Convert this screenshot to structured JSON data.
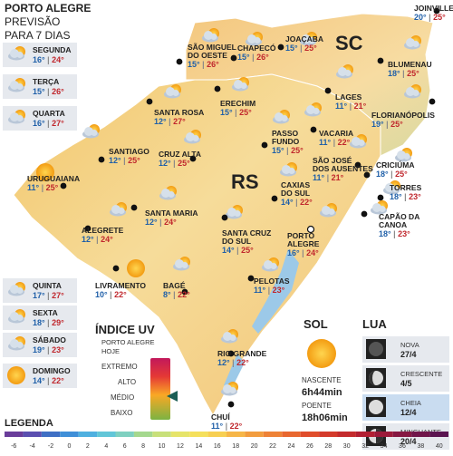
{
  "header": {
    "title": "PORTO ALEGRE",
    "subtitle_1": "PREVISÃO",
    "subtitle_2": "PARA 7 DIAS"
  },
  "days": [
    {
      "name": "SEGUNDA",
      "min": "16°",
      "max": "24°"
    },
    {
      "name": "TERÇA",
      "min": "15°",
      "max": "26°"
    },
    {
      "name": "QUARTA",
      "min": "16°",
      "max": "27°"
    },
    {
      "name": "QUINTA",
      "min": "17°",
      "max": "27°"
    },
    {
      "name": "SEXTA",
      "min": "18°",
      "max": "29°"
    },
    {
      "name": "SÁBADO",
      "min": "19°",
      "max": "23°"
    },
    {
      "name": "DOMINGO",
      "min": "14°",
      "max": "22°"
    }
  ],
  "states": [
    "RS",
    "SC"
  ],
  "cities": [
    {
      "name": "JOINVILLE",
      "min": "20°",
      "max": "25°"
    },
    {
      "name": "SÃO MIGUEL",
      "name_2": "DO OESTE",
      "min": "15°",
      "max": "26°"
    },
    {
      "name": "CHAPECÓ",
      "min": "15°",
      "max": "26°"
    },
    {
      "name": "JOAÇABA",
      "min": "15°",
      "max": "25°"
    },
    {
      "name": "BLUMENAU",
      "min": "18°",
      "max": "25°"
    },
    {
      "name": "LAGES",
      "min": "11°",
      "max": "21°"
    },
    {
      "name": "FLORIANÓPOLIS",
      "min": "19°",
      "max": "25°"
    },
    {
      "name": "SANTA ROSA",
      "min": "12°",
      "max": "27°"
    },
    {
      "name": "ERECHIM",
      "min": "15°",
      "max": "25°"
    },
    {
      "name": "VACARIA",
      "min": "11°",
      "max": "22°"
    },
    {
      "name": "SANTIAGO",
      "min": "12°",
      "max": "25°"
    },
    {
      "name": "CRUZ ALTA",
      "min": "12°",
      "max": "25°"
    },
    {
      "name": "PASSO",
      "name_2": "FUNDO",
      "min": "15°",
      "max": "25°"
    },
    {
      "name": "SÃO JOSÉ",
      "name_2": "DOS AUSENTES",
      "min": "11°",
      "max": "21°"
    },
    {
      "name": "CRICIÚMA",
      "min": "18°",
      "max": "25°"
    },
    {
      "name": "URUGUAIANA",
      "min": "11°",
      "max": "25°"
    },
    {
      "name": "CAXIAS",
      "name_2": "DO SUL",
      "min": "14°",
      "max": "22°"
    },
    {
      "name": "TORRES",
      "min": "18°",
      "max": "23°"
    },
    {
      "name": "SANTA MARIA",
      "min": "12°",
      "max": "24°"
    },
    {
      "name": "ALEGRETE",
      "min": "12°",
      "max": "24°"
    },
    {
      "name": "SANTA CRUZ",
      "name_2": "DO SUL",
      "min": "14°",
      "max": "25°"
    },
    {
      "name": "PORTO",
      "name_2": "ALEGRE",
      "min": "16°",
      "max": "24°"
    },
    {
      "name": "CAPÃO DA",
      "name_2": "CANOA",
      "min": "18°",
      "max": "23°"
    },
    {
      "name": "LIVRAMENTO",
      "min": "10°",
      "max": "22°"
    },
    {
      "name": "BAGÉ",
      "min": "8°",
      "max": "22°"
    },
    {
      "name": "PELOTAS",
      "min": "11°",
      "max": "23°"
    },
    {
      "name": "RIO GRANDE",
      "min": "12°",
      "max": "22°"
    },
    {
      "name": "CHUÍ",
      "min": "11°",
      "max": "22°"
    }
  ],
  "uv": {
    "title": "ÍNDICE UV",
    "place": "PORTO ALEGRE",
    "day": "HOJE",
    "levels": [
      "EXTREMO",
      "ALTO",
      "MÉDIO",
      "BAIXO"
    ]
  },
  "sun": {
    "title": "SOL",
    "rise_label": "NASCENTE",
    "rise": "6h44min",
    "set_label": "POENTE",
    "set": "18h06min"
  },
  "moon": {
    "title": "LUA",
    "phases": [
      {
        "name": "NOVA",
        "date": "27/4"
      },
      {
        "name": "CRESCENTE",
        "date": "4/5"
      },
      {
        "name": "CHEIA",
        "date": "12/4"
      },
      {
        "name": "MINGUANTE",
        "date": "20/4"
      }
    ]
  },
  "legend": {
    "title": "LEGENDA",
    "ticks": [
      -6,
      -4,
      -2,
      0,
      2,
      4,
      6,
      8,
      10,
      12,
      14,
      16,
      18,
      20,
      22,
      24,
      26,
      28,
      30,
      32,
      34,
      36,
      38,
      40
    ]
  }
}
